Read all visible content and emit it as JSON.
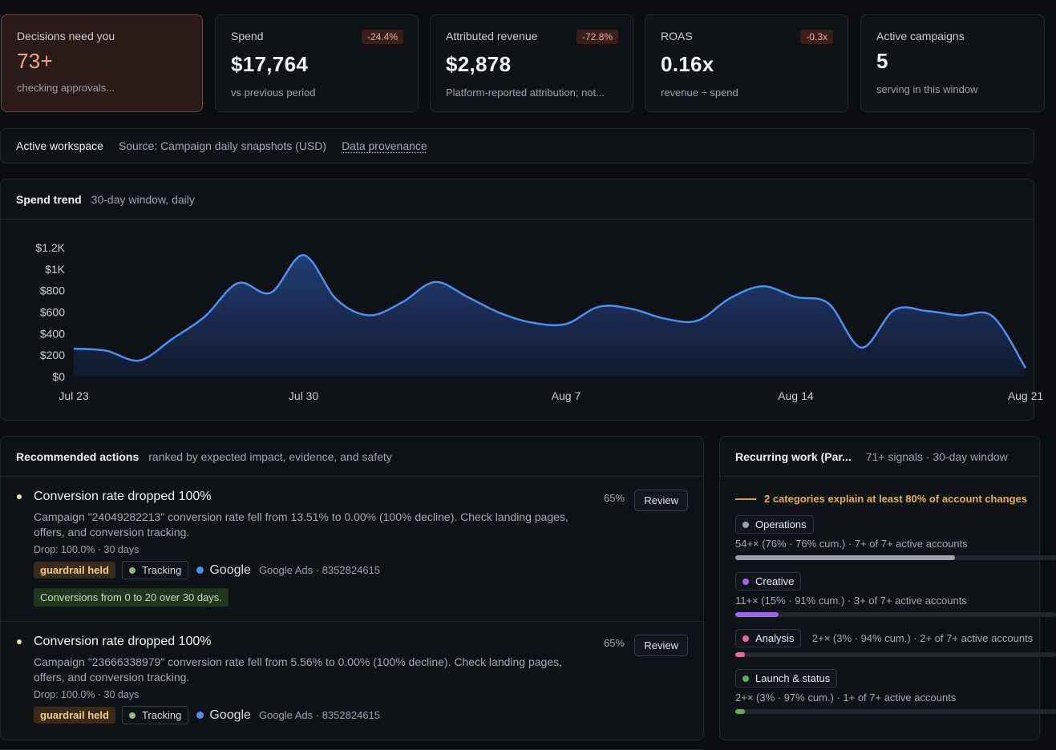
{
  "kpis": {
    "decisions": {
      "label": "Decisions need you",
      "value": "73+",
      "sub": "checking approvals..."
    },
    "spend": {
      "label": "Spend",
      "value": "$17,764",
      "delta": "-24.4%",
      "sub": "vs previous period"
    },
    "revenue": {
      "label": "Attributed revenue",
      "value": "$2,878",
      "delta": "-72.8%",
      "sub": "Platform-reported attribution; not..."
    },
    "roas": {
      "label": "ROAS",
      "value": "0.16x",
      "delta": "-0.3x",
      "sub": "revenue ÷ spend"
    },
    "campaigns": {
      "label": "Active campaigns",
      "value": "5",
      "sub": "serving in this window"
    }
  },
  "workspace_bar": {
    "workspace": "Active workspace",
    "source": "Source: Campaign daily snapshots (USD)",
    "provenance_link": "Data provenance"
  },
  "spend_trend": {
    "title": "Spend trend",
    "subtitle": "30-day window, daily"
  },
  "chart_data": {
    "type": "area",
    "title": "Spend trend",
    "subtitle": "30-day window, daily",
    "x": [
      "Jul 23",
      "Jul 24",
      "Jul 25",
      "Jul 26",
      "Jul 27",
      "Jul 28",
      "Jul 29",
      "Jul 30",
      "Jul 31",
      "Aug 1",
      "Aug 2",
      "Aug 3",
      "Aug 4",
      "Aug 5",
      "Aug 6",
      "Aug 7",
      "Aug 8",
      "Aug 9",
      "Aug 10",
      "Aug 11",
      "Aug 12",
      "Aug 13",
      "Aug 14",
      "Aug 15",
      "Aug 16",
      "Aug 17",
      "Aug 18",
      "Aug 19",
      "Aug 20",
      "Aug 21"
    ],
    "values": [
      260,
      240,
      150,
      350,
      560,
      870,
      780,
      1130,
      720,
      570,
      690,
      880,
      740,
      590,
      500,
      490,
      650,
      630,
      540,
      520,
      730,
      840,
      740,
      680,
      270,
      620,
      610,
      570,
      560,
      80
    ],
    "x_tick_labels": [
      "Jul 23",
      "Jul 30",
      "Aug 7",
      "Aug 14",
      "Aug 21"
    ],
    "y_tick_labels": [
      "$0",
      "$200",
      "$400",
      "$600",
      "$800",
      "$1K",
      "$1.2K"
    ],
    "ylim": [
      0,
      1200
    ],
    "grid": false,
    "colors": {
      "line": "#4d8ef0",
      "fill_top": "#23407a",
      "fill_bottom": "#111a2e"
    }
  },
  "recommended": {
    "title": "Recommended actions",
    "subtitle": "ranked by expected impact, evidence, and safety",
    "items": [
      {
        "title": "Conversion rate dropped 100%",
        "description": "Campaign \"24049282213\" conversion rate fell from 13.51% to 0.00% (100% decline). Check landing pages, offers, and conversion tracking.",
        "meta": "Drop: 100.0% · 30 days",
        "confidence": "65%",
        "button": "Review",
        "guard": "guardrail held",
        "tag": "Tracking",
        "platform": "Google",
        "account": "Google Ads · 8352824615",
        "evidence": "Conversions from 0 to 20 over 30 days."
      },
      {
        "title": "Conversion rate dropped 100%",
        "description": "Campaign \"23666338979\" conversion rate fell from 5.56% to 0.00% (100% decline). Check landing pages, offers, and conversion tracking.",
        "meta": "Drop: 100.0% · 30 days",
        "confidence": "65%",
        "button": "Review",
        "guard": "guardrail held",
        "tag": "Tracking",
        "platform": "Google",
        "account": "Google Ads · 8352824615"
      }
    ]
  },
  "recurring": {
    "title": "Recurring work (Par...",
    "subtitle": "71+ signals · 30-day window",
    "callout": "2 categories explain at least 80% of account changes",
    "categories": [
      {
        "name": "Operations",
        "info": "54+× (76% · 76% cum.) · 7+ of 7+ active accounts",
        "share": 0.76,
        "color": "#9ca1aa"
      },
      {
        "name": "Creative",
        "info": "11+× (15% · 91% cum.) · 3+ of 7+ active accounts",
        "share": 0.15,
        "color": "#9d63f0"
      },
      {
        "name": "Analysis",
        "info": "2+× (3% · 94% cum.) · 2+ of 7+ active accounts",
        "share": 0.03,
        "color": "#e0709a"
      },
      {
        "name": "Launch & status",
        "info": "2+× (3% · 97% cum.) · 1+ of 7+ active accounts",
        "share": 0.03,
        "color": "#5bb04e"
      }
    ]
  }
}
